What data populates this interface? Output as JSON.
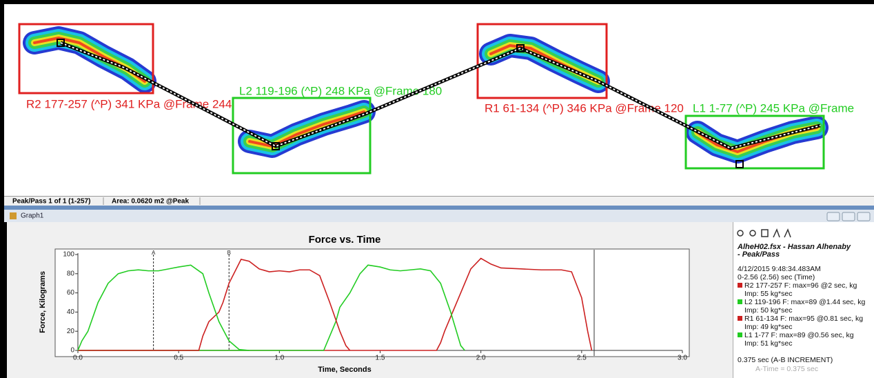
{
  "footprints": [
    {
      "label": "R2 177-257 (^P) 341 KPa @Frame 244",
      "color": "#e02020"
    },
    {
      "label": "L2 119-196 (^P) 248 KPa @Frame 180",
      "color": "#22cc22"
    },
    {
      "label": "R1 61-134 (^P) 346 KPa @Frame 120",
      "color": "#e02020"
    },
    {
      "label": "L1 1-77 (^P) 245 KPa @Frame",
      "color": "#22cc22"
    }
  ],
  "status": [
    "Peak/Pass 1 of 1 (1-257)",
    "Area: 0.0620 m2 @Peak"
  ],
  "window_title": "Graph1",
  "chart_data": {
    "type": "line",
    "title": "Force vs. Time",
    "y_label": "Force, Kilograms",
    "x_label": "Time, Seconds",
    "xlim": [
      0,
      3
    ],
    "ylim": [
      0,
      100
    ],
    "xticks": [
      {
        "value": 0,
        "label": "0.0"
      },
      0.5,
      {
        "value": 1,
        "label": "1.0"
      },
      1.5,
      {
        "value": 2,
        "label": "2.0"
      },
      2.5,
      {
        "value": 3,
        "label": "3.0"
      }
    ],
    "yticks": [
      0,
      20,
      40,
      60,
      80,
      100
    ],
    "markers": [
      {
        "label": "A",
        "value": 0.375
      },
      {
        "label": "B",
        "value": 0.75
      }
    ],
    "series": [
      {
        "name": "R2 177-257 F: max=96 @2 sec, kg",
        "impulse": "Imp: 55 kg*sec",
        "color": "#cc2020",
        "x": [
          0,
          1.78,
          1.8,
          1.82,
          1.85,
          1.9,
          1.95,
          2.0,
          2.05,
          2.1,
          2.2,
          2.3,
          2.4,
          2.45,
          2.5,
          2.53,
          2.55
        ],
        "values": [
          0,
          0,
          8,
          20,
          35,
          60,
          85,
          96,
          90,
          86,
          85,
          84,
          84,
          82,
          55,
          20,
          0
        ]
      },
      {
        "name": "L2 119-196 F: max=89 @1.44 sec, kg",
        "impulse": "Imp: 50 kg*sec",
        "color": "#22cc22",
        "x": [
          0,
          1.22,
          1.25,
          1.28,
          1.3,
          1.35,
          1.4,
          1.44,
          1.5,
          1.55,
          1.6,
          1.65,
          1.7,
          1.75,
          1.8,
          1.85,
          1.9,
          1.92
        ],
        "values": [
          0,
          0,
          15,
          30,
          45,
          60,
          80,
          89,
          87,
          84,
          83,
          84,
          85,
          83,
          70,
          40,
          5,
          0
        ]
      },
      {
        "name": "R1 61-134 F: max=95 @0.81 sec, kg",
        "impulse": "Imp: 49 kg*sec",
        "color": "#cc2020",
        "x": [
          0,
          0.6,
          0.62,
          0.65,
          0.7,
          0.72,
          0.75,
          0.81,
          0.85,
          0.9,
          0.95,
          1.0,
          1.05,
          1.1,
          1.15,
          1.2,
          1.25,
          1.3,
          1.33,
          1.35
        ],
        "values": [
          0,
          0,
          15,
          30,
          40,
          50,
          70,
          95,
          93,
          85,
          82,
          83,
          82,
          84,
          84,
          78,
          50,
          20,
          5,
          0
        ]
      },
      {
        "name": "L1 1-77 F: max=89 @0.56 sec, kg",
        "impulse": "Imp: 51 kg*sec",
        "color": "#22cc22",
        "x": [
          0,
          0.02,
          0.05,
          0.1,
          0.15,
          0.2,
          0.25,
          0.3,
          0.35,
          0.4,
          0.45,
          0.5,
          0.56,
          0.62,
          0.65,
          0.7,
          0.75,
          0.8,
          0.85
        ],
        "values": [
          0,
          10,
          20,
          50,
          70,
          80,
          83,
          84,
          83,
          83,
          85,
          87,
          89,
          80,
          60,
          30,
          10,
          1,
          0
        ]
      }
    ]
  },
  "info": {
    "file": [
      "AlheH02.fsx - Hassan  Alhenaby",
      "- Peak/Pass"
    ],
    "timestamp": "4/12/2015 9:48:34.483AM",
    "range": "0-2.56 (2.56) sec (Time)",
    "increment": "0.375 sec (A-B INCREMENT)",
    "a_time": "A-Time = 0.375 sec"
  }
}
